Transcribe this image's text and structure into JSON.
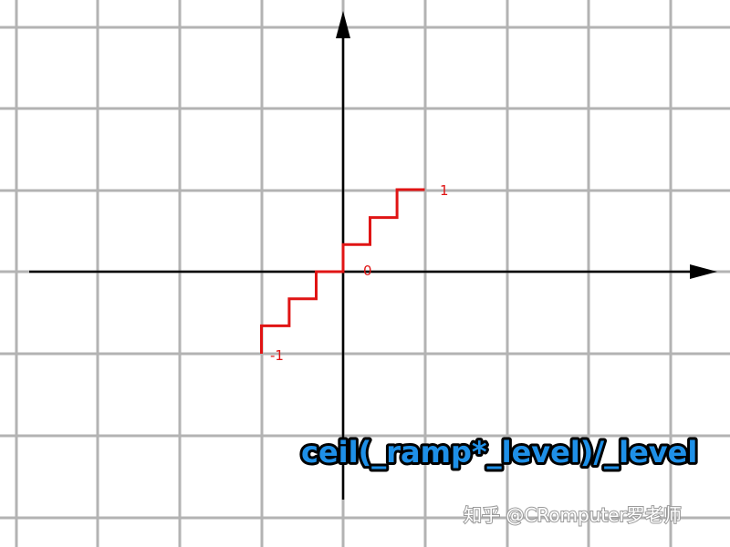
{
  "chart_data": {
    "type": "line",
    "series": [
      {
        "values": [
          {
            "x": -1.0,
            "y": -1.0
          },
          {
            "x": -1.0,
            "y": -0.66
          },
          {
            "x": -0.66,
            "y": -0.66
          },
          {
            "x": -0.66,
            "y": -0.33
          },
          {
            "x": -0.33,
            "y": -0.33
          },
          {
            "x": -0.33,
            "y": 0.0
          },
          {
            "x": 0.0,
            "y": 0.0
          },
          {
            "x": 0.0,
            "y": 0.33
          },
          {
            "x": 0.33,
            "y": 0.33
          },
          {
            "x": 0.33,
            "y": 0.66
          },
          {
            "x": 0.66,
            "y": 0.66
          },
          {
            "x": 0.66,
            "y": 1.0
          },
          {
            "x": 1.0,
            "y": 1.0
          }
        ]
      }
    ],
    "annotations": {
      "one": "1",
      "zero": "0",
      "minus_one": "-1"
    },
    "formula": "ceil(_ramp*_level)/_level",
    "grid": true,
    "line_color": "#e01414",
    "formula_color": "#1e90e8"
  },
  "watermark": "知乎 @CRomputer罗老师"
}
